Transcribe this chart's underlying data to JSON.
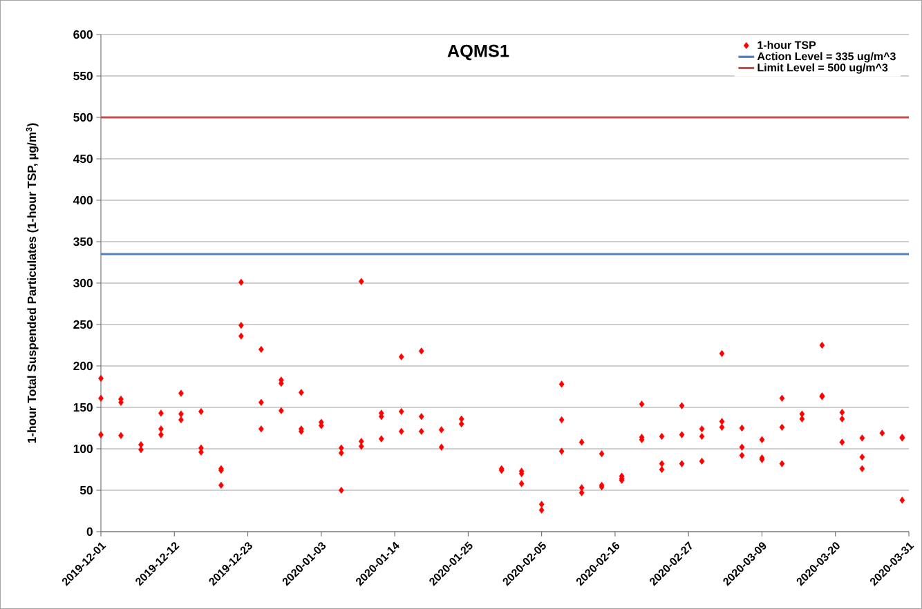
{
  "chart_data": {
    "type": "scatter",
    "title": "AQMS1",
    "ylabel": "1-hour Total Suspended Particulates (1-hour TSP, µg/m$^{3}$)",
    "series": [
      {
        "name": "1-hour TSP",
        "color": "#ff0000",
        "x": [
          "2019-12-01",
          "2019-12-01",
          "2019-12-01",
          "2019-12-04",
          "2019-12-04",
          "2019-12-04",
          "2019-12-07",
          "2019-12-07",
          "2019-12-10",
          "2019-12-10",
          "2019-12-10",
          "2019-12-13",
          "2019-12-13",
          "2019-12-13",
          "2019-12-16",
          "2019-12-16",
          "2019-12-16",
          "2019-12-19",
          "2019-12-19",
          "2019-12-19",
          "2019-12-22",
          "2019-12-22",
          "2019-12-22",
          "2019-12-25",
          "2019-12-25",
          "2019-12-25",
          "2019-12-28",
          "2019-12-28",
          "2019-12-28",
          "2019-12-31",
          "2019-12-31",
          "2019-12-31",
          "2020-01-03",
          "2020-01-03",
          "2020-01-06",
          "2020-01-06",
          "2020-01-06",
          "2020-01-09",
          "2020-01-09",
          "2020-01-09",
          "2020-01-12",
          "2020-01-12",
          "2020-01-12",
          "2020-01-15",
          "2020-01-15",
          "2020-01-15",
          "2020-01-18",
          "2020-01-18",
          "2020-01-18",
          "2020-01-21",
          "2020-01-21",
          "2020-01-24",
          "2020-01-24",
          "2020-01-30",
          "2020-01-30",
          "2020-02-02",
          "2020-02-02",
          "2020-02-02",
          "2020-02-05",
          "2020-02-05",
          "2020-02-08",
          "2020-02-08",
          "2020-02-08",
          "2020-02-11",
          "2020-02-11",
          "2020-02-11",
          "2020-02-14",
          "2020-02-14",
          "2020-02-14",
          "2020-02-17",
          "2020-02-17",
          "2020-02-17",
          "2020-02-20",
          "2020-02-20",
          "2020-02-20",
          "2020-02-23",
          "2020-02-23",
          "2020-02-23",
          "2020-02-26",
          "2020-02-26",
          "2020-02-26",
          "2020-02-29",
          "2020-02-29",
          "2020-02-29",
          "2020-03-03",
          "2020-03-03",
          "2020-03-03",
          "2020-03-06",
          "2020-03-06",
          "2020-03-06",
          "2020-03-09",
          "2020-03-09",
          "2020-03-09",
          "2020-03-12",
          "2020-03-12",
          "2020-03-12",
          "2020-03-15",
          "2020-03-15",
          "2020-03-18",
          "2020-03-18",
          "2020-03-18",
          "2020-03-21",
          "2020-03-21",
          "2020-03-21",
          "2020-03-24",
          "2020-03-24",
          "2020-03-24",
          "2020-03-27",
          "2020-03-30",
          "2020-03-30",
          "2020-03-30"
        ],
        "values": [
          185,
          161,
          117,
          160,
          156,
          116,
          105,
          99,
          143,
          124,
          117,
          167,
          142,
          135,
          145,
          101,
          96,
          76,
          74,
          56,
          301,
          249,
          236,
          220,
          156,
          124,
          183,
          179,
          146,
          168,
          124,
          121,
          132,
          128,
          101,
          95,
          50,
          302,
          109,
          103,
          143,
          139,
          112,
          211,
          145,
          121,
          218,
          139,
          121,
          123,
          102,
          136,
          130,
          76,
          74,
          73,
          70,
          58,
          33,
          26,
          178,
          135,
          97,
          108,
          53,
          47,
          94,
          56,
          54,
          67,
          64,
          62,
          154,
          114,
          111,
          115,
          82,
          75,
          152,
          117,
          82,
          124,
          115,
          85,
          215,
          133,
          126,
          125,
          102,
          92,
          111,
          89,
          87,
          161,
          126,
          82,
          142,
          136,
          225,
          164,
          163,
          144,
          136,
          108,
          113,
          90,
          76,
          119,
          114,
          113,
          38
        ]
      }
    ],
    "ref_lines": [
      {
        "axis": "y",
        "value": 335,
        "label": "Action Level = 335 ug/m^3",
        "color": "#4f81bd",
        "line_style": "solid"
      },
      {
        "axis": "y",
        "value": 500,
        "label": "Limit Level = 500 ug/m^3",
        "color": "#c0504d",
        "line_style": "solid"
      }
    ],
    "xlim": [
      "2019-12-01",
      "2020-03-31"
    ],
    "xticks": [
      "2019-12-01",
      "2019-12-12",
      "2019-12-23",
      "2020-01-03",
      "2020-01-14",
      "2020-01-25",
      "2020-02-05",
      "2020-02-16",
      "2020-02-27",
      "2020-03-09",
      "2020-03-20",
      "2020-03-31"
    ],
    "ylim": [
      0,
      600
    ],
    "yticks": [
      0,
      50,
      100,
      150,
      200,
      250,
      300,
      350,
      400,
      450,
      500,
      550,
      600
    ],
    "grid": "y",
    "legend": "top right",
    "marker": "diamond"
  }
}
